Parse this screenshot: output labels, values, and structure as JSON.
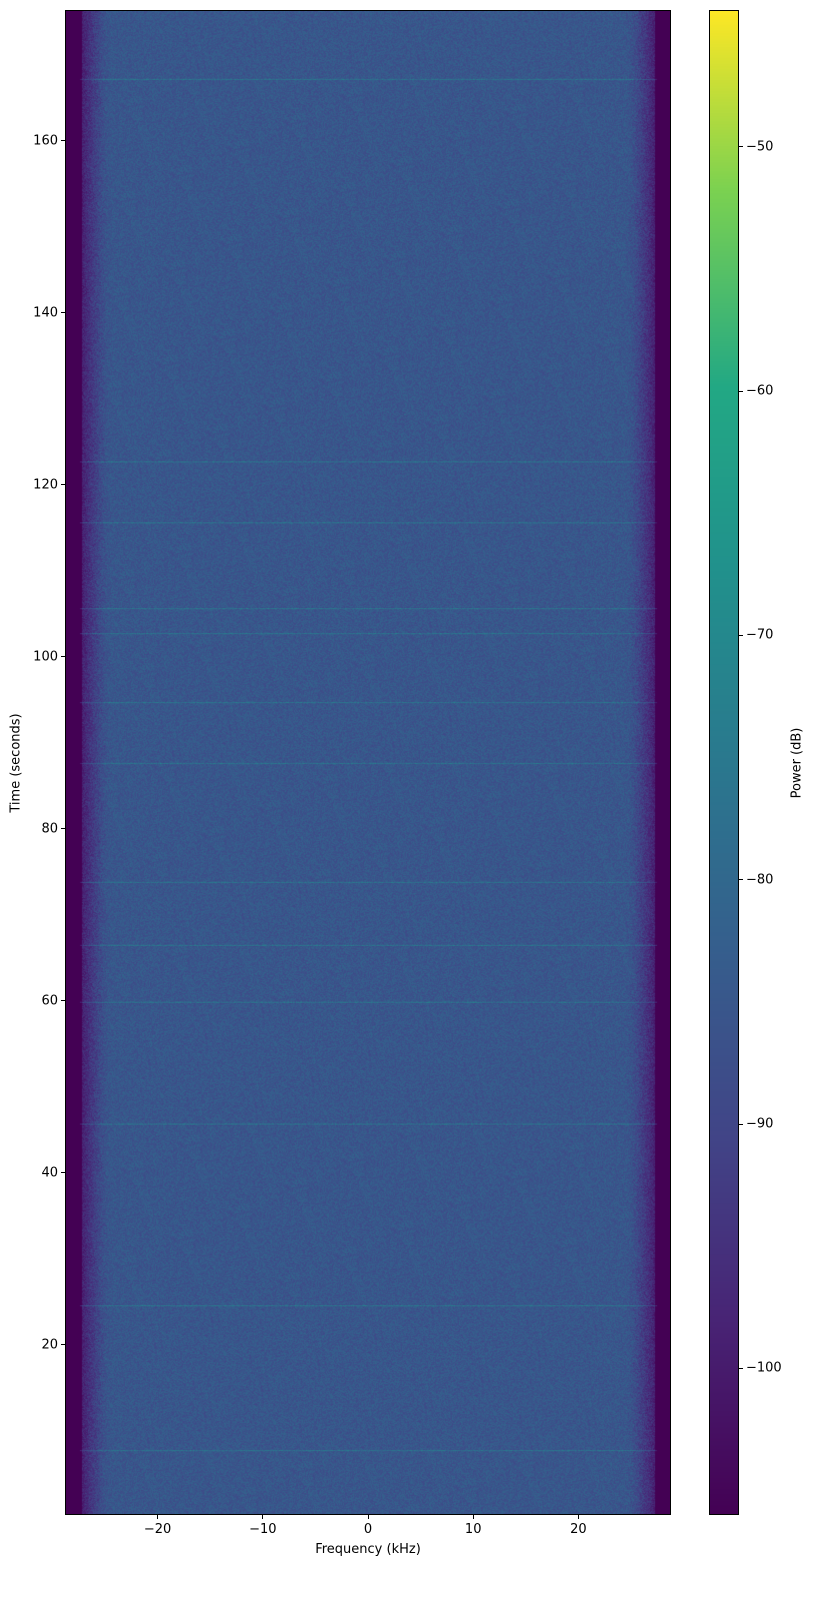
{
  "chart_data": {
    "type": "heatmap",
    "subtype": "spectrogram",
    "title": "",
    "xlabel": "Frequency (kHz)",
    "ylabel": "Time (seconds)",
    "colorbar_label": "Power (dB)",
    "colormap": "viridis",
    "xlim": [
      -28.8,
      28.8
    ],
    "ylim": [
      0.2,
      175.2
    ],
    "clim": [
      -106,
      -44.4
    ],
    "xticks": [
      -20,
      -10,
      0,
      10,
      20
    ],
    "xtick_labels": [
      "−20",
      "−10",
      "0",
      "10",
      "20"
    ],
    "yticks": [
      20,
      40,
      60,
      80,
      100,
      120,
      140,
      160
    ],
    "ytick_labels": [
      "20",
      "40",
      "60",
      "80",
      "100",
      "120",
      "140",
      "160"
    ],
    "cticks": [
      -50,
      -60,
      -70,
      -80,
      -90,
      -100
    ],
    "ctick_labels": [
      "−50",
      "−60",
      "−70",
      "−80",
      "−90",
      "−100"
    ],
    "passband_khz": [
      -26,
      26
    ],
    "inband_power_db": -85,
    "outband_power_db": -106,
    "narrowband_bursts_time_s": [
      7.7,
      24.5,
      45.7,
      59.8,
      66.5,
      73.8,
      87.6,
      94.7,
      102.8,
      105.7,
      115.7,
      122.8,
      167.3
    ],
    "grid": false
  }
}
